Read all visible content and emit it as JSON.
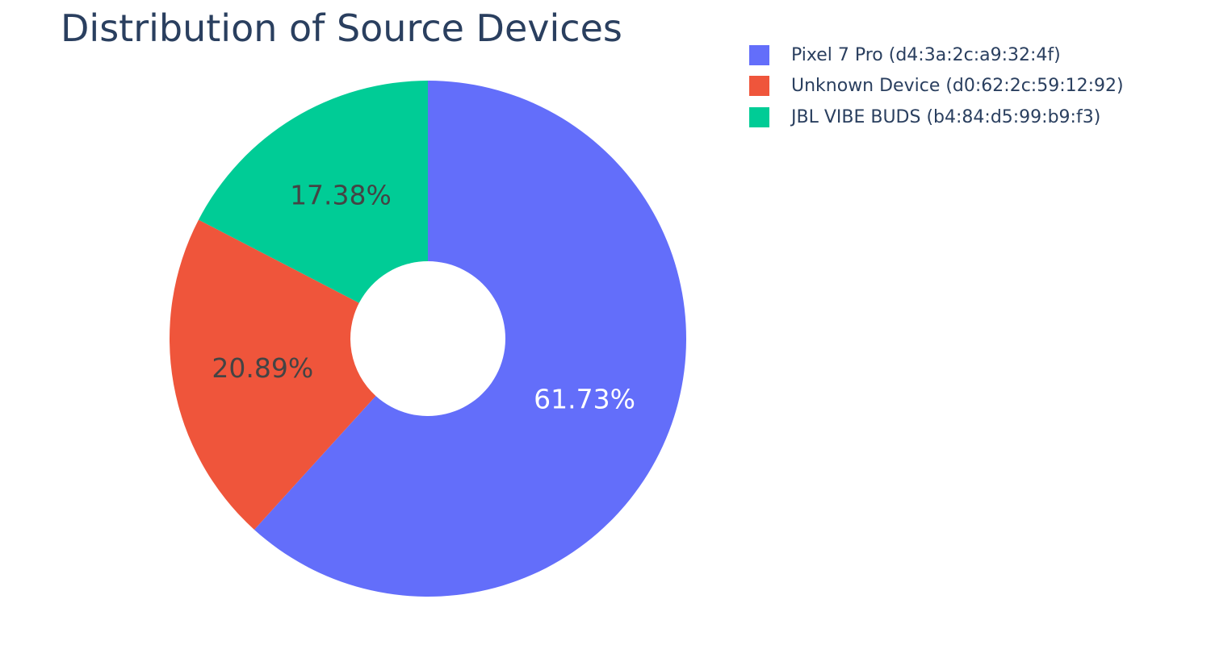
{
  "chart_data": {
    "type": "pie",
    "title": "Distribution of Source Devices",
    "hole": true,
    "legend_position": "top-right",
    "slices": [
      {
        "label": "Pixel 7 Pro (d4:3a:2c:a9:32:4f)",
        "value": 61.73,
        "text": "61.73%",
        "color": "#636efa",
        "text_color": "#ffffff"
      },
      {
        "label": "Unknown Device (d0:62:2c:59:12:92)",
        "value": 20.89,
        "text": "20.89%",
        "color": "#ef553b",
        "text_color": "#444444"
      },
      {
        "label": "JBL VIBE BUDS (b4:84:d5:99:b9:f3)",
        "value": 17.38,
        "text": "17.38%",
        "color": "#00cc96",
        "text_color": "#444444"
      }
    ]
  }
}
